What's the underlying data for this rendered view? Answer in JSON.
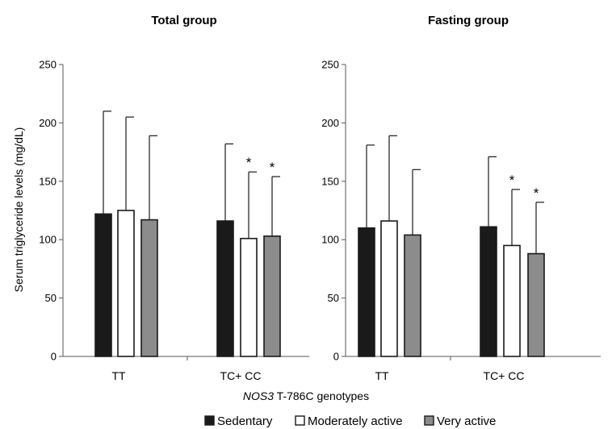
{
  "chart_data": [
    {
      "type": "bar",
      "title": "Total group",
      "ylabel": "Serum triglyceride levels (mg/dL)",
      "ylim": [
        0,
        250
      ],
      "yticks": [
        0,
        50,
        100,
        150,
        200,
        250
      ],
      "categories": [
        "TT",
        "TC+ CC"
      ],
      "series": [
        {
          "name": "Sedentary",
          "color": "#1a1a1a",
          "values": [
            122,
            116
          ],
          "errors": [
            88,
            66
          ],
          "significant": [
            false,
            false
          ]
        },
        {
          "name": "Moderately active",
          "color": "#ffffff",
          "values": [
            125,
            101
          ],
          "errors": [
            80,
            57
          ],
          "significant": [
            false,
            true
          ]
        },
        {
          "name": "Very active",
          "color": "#8c8c8c",
          "values": [
            117,
            103
          ],
          "errors": [
            72,
            51
          ],
          "significant": [
            false,
            true
          ]
        }
      ],
      "significance_marker": "*"
    },
    {
      "type": "bar",
      "title": "Fasting group",
      "ylabel": "",
      "ylim": [
        0,
        250
      ],
      "yticks": [
        0,
        50,
        100,
        150,
        200,
        250
      ],
      "categories": [
        "TT",
        "TC+ CC"
      ],
      "series": [
        {
          "name": "Sedentary",
          "color": "#1a1a1a",
          "values": [
            110,
            111
          ],
          "errors": [
            71,
            60
          ],
          "significant": [
            false,
            false
          ]
        },
        {
          "name": "Moderately active",
          "color": "#ffffff",
          "values": [
            116,
            95
          ],
          "errors": [
            73,
            48
          ],
          "significant": [
            false,
            true
          ]
        },
        {
          "name": "Very active",
          "color": "#8c8c8c",
          "values": [
            104,
            88
          ],
          "errors": [
            56,
            44
          ],
          "significant": [
            false,
            true
          ]
        }
      ],
      "significance_marker": "*"
    }
  ],
  "shared_xlabel": {
    "italic_part": "NOS3",
    "rest": " T-786C genotypes"
  },
  "legend": {
    "placement": "bottom-center",
    "items": [
      {
        "label": "Sedentary",
        "color": "#1a1a1a"
      },
      {
        "label": "Moderately active",
        "color": "#ffffff"
      },
      {
        "label": "Very active",
        "color": "#8c8c8c"
      }
    ]
  }
}
